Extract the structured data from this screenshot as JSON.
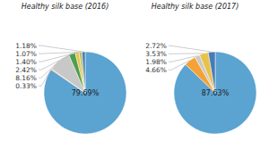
{
  "chart_data": [
    {
      "type": "pie",
      "title": "Healthy silk base (2016)",
      "values": [
        79.69,
        0.33,
        8.16,
        2.42,
        1.4,
        1.07,
        1.18
      ],
      "value_labels": [
        "79.69%",
        "0.33%",
        "8.16%",
        "2.42%",
        "1.40%",
        "1.07%",
        "1.18%"
      ],
      "colors": [
        "#5ba3d0",
        "#f4a236",
        "#c8c8c8",
        "#4e9e4e",
        "#e8c24a",
        "#b0c45c",
        "#4a7ab5"
      ]
    },
    {
      "type": "pie",
      "title": "Healthy silk base (2017)",
      "values": [
        87.63,
        4.66,
        1.98,
        3.53,
        2.72
      ],
      "value_labels": [
        "87.63%",
        "4.66%",
        "1.98%",
        "3.53%",
        "2.72%"
      ],
      "colors": [
        "#5ba3d0",
        "#f4a236",
        "#c8c8c8",
        "#e8c24a",
        "#4a7ab5"
      ]
    }
  ]
}
